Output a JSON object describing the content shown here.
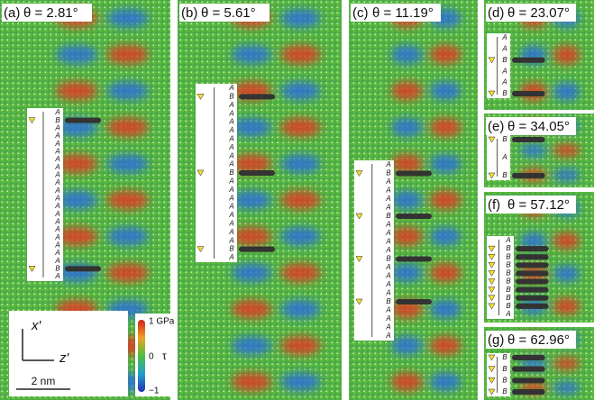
{
  "panels": [
    {
      "tag": "(a)",
      "angle": "θ = 2.81°",
      "stacking": [
        "A",
        "B",
        "A",
        "A",
        "A",
        "A",
        "A",
        "A",
        "A",
        "A",
        "A",
        "A",
        "A",
        "A",
        "A",
        "A",
        "A",
        "A",
        "A",
        "A",
        "B",
        "A"
      ]
    },
    {
      "tag": "(b)",
      "angle": "θ = 5.61°",
      "stacking": [
        "A",
        "B",
        "A",
        "A",
        "A",
        "A",
        "A",
        "A",
        "A",
        "A",
        "B",
        "A",
        "A",
        "A",
        "A",
        "A",
        "A",
        "A",
        "A",
        "B",
        "A"
      ]
    },
    {
      "tag": "(c)",
      "angle": "θ = 11.19°",
      "stacking": [
        "A",
        "B",
        "A",
        "A",
        "A",
        "A",
        "B",
        "A",
        "A",
        "A",
        "A",
        "B",
        "A",
        "A",
        "A",
        "A",
        "B",
        "A",
        "A",
        "A",
        "A"
      ]
    },
    {
      "tag": "(d)",
      "angle": "θ = 23.07°",
      "stacking": [
        "A",
        "A",
        "B",
        "A",
        "A",
        "B"
      ]
    },
    {
      "tag": "(e)",
      "angle": "θ = 34.05°",
      "stacking": [
        "B",
        "A",
        "B"
      ]
    },
    {
      "tag": "(f)",
      "angle": "θ = 57.12°",
      "stacking": [
        "A",
        "B",
        "B",
        "B",
        "B",
        "B",
        "B",
        "B",
        "B",
        "A"
      ]
    },
    {
      "tag": "(g)",
      "angle": "θ = 62.96°",
      "stacking": [
        "B",
        "B",
        "B",
        "B"
      ]
    }
  ],
  "legend": {
    "x_axis": "x′",
    "z_axis": "z′",
    "scale_bar": "2 nm",
    "color_max": "1 GPa",
    "color_mid": "0",
    "color_min": "−1",
    "color_symbol": "τ"
  }
}
